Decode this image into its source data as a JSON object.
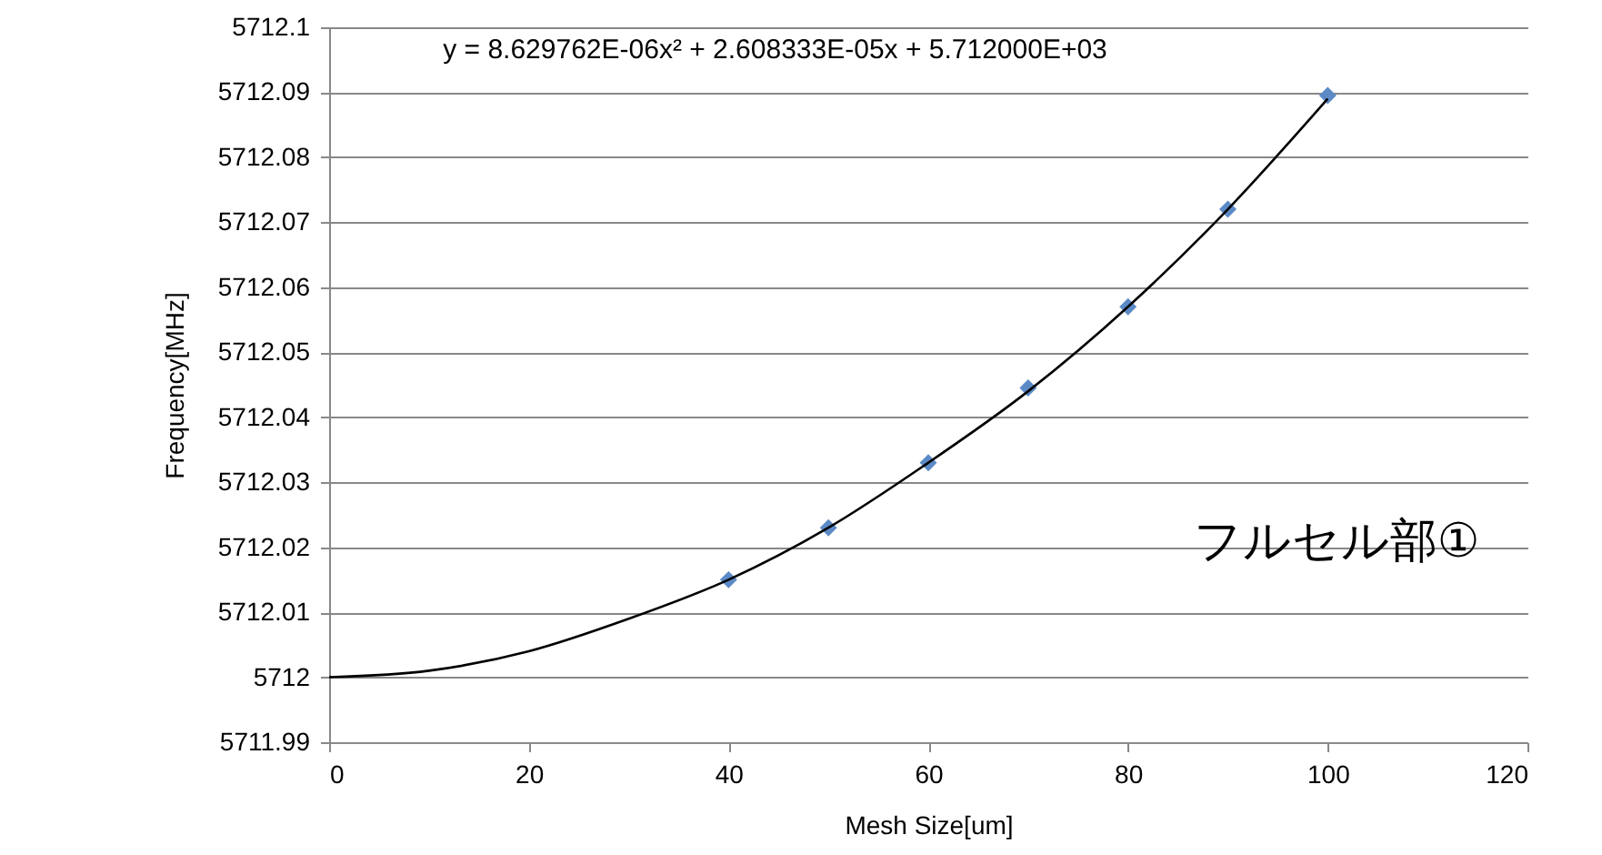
{
  "chart_data": {
    "type": "scatter",
    "xlabel": "Mesh Size[um]",
    "ylabel": "Frequency[MHz]",
    "x": [
      40,
      50,
      60,
      70,
      80,
      90,
      100
    ],
    "series": [
      {
        "type": "scatter",
        "color": "#5b8ac6",
        "marker": "diamond",
        "values": [
          5712.015,
          5712.023,
          5712.033,
          5712.0445,
          5712.057,
          5712.072,
          5712.0895
        ]
      },
      {
        "type": "line",
        "marker": "none",
        "color": "#000000",
        "x": [
          0,
          10,
          20,
          30,
          40,
          50,
          60,
          70,
          80,
          90,
          100
        ],
        "values": [
          5712.0,
          5712.001,
          5712.004,
          5712.009,
          5712.015,
          5712.023,
          5712.033,
          5712.044,
          5712.057,
          5712.072,
          5712.089
        ]
      }
    ],
    "xlim": [
      0,
      120
    ],
    "xticks": [
      0,
      20,
      40,
      60,
      80,
      100,
      120
    ],
    "ylim": [
      5711.99,
      5712.1
    ],
    "yticks": [
      5711.99,
      5712,
      5712.01,
      5712.02,
      5712.03,
      5712.04,
      5712.05,
      5712.06,
      5712.07,
      5712.08,
      5712.09,
      5712.1
    ],
    "grid": "y",
    "line_style": "solid",
    "annotations": [
      "y = 8.629762E-06x² + 2.608333E-05x + 5.712000E+03",
      "フルセル部①"
    ]
  }
}
